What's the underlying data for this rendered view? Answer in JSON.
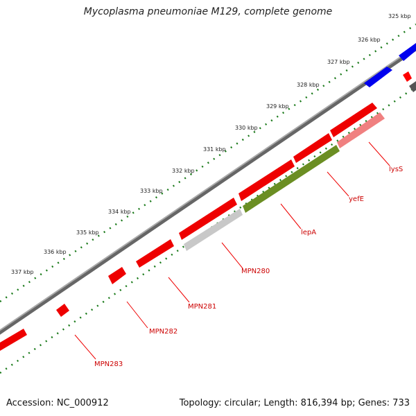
{
  "title": "Mycoplasma pneumoniae M129, complete genome",
  "footer": {
    "accession": "Accession: NC_000912",
    "summary": "Topology: circular; Length: 816,394 bp; Genes: 733"
  },
  "ruler": {
    "unit": "kbp",
    "ticks": [
      "325 kbp",
      "326 kbp",
      "327 kbp",
      "328 kbp",
      "329 kbp",
      "330 kbp",
      "331 kbp",
      "332 kbp",
      "333 kbp",
      "334 kbp",
      "335 kbp",
      "336 kbp",
      "337 kbp"
    ]
  },
  "genes": [
    {
      "label": "MPN283",
      "color": "#ff0000"
    },
    {
      "label": "MPN282",
      "color": "#ff0000"
    },
    {
      "label": "MPN281",
      "color": "#ff0000"
    },
    {
      "label": "MPN280",
      "color": "#c0c0c0"
    },
    {
      "label": "lepA",
      "color": "#6b8e23"
    },
    {
      "label": "yefE",
      "color": "#ff0000"
    },
    {
      "label": "lysS",
      "color": "#f08080"
    }
  ],
  "colors": {
    "forward_strand": "#0000ff",
    "reverse_strand": "#ff0000",
    "backbone": "#808080",
    "tick_marks": "#228b22",
    "label_lines": "#ff0000"
  }
}
